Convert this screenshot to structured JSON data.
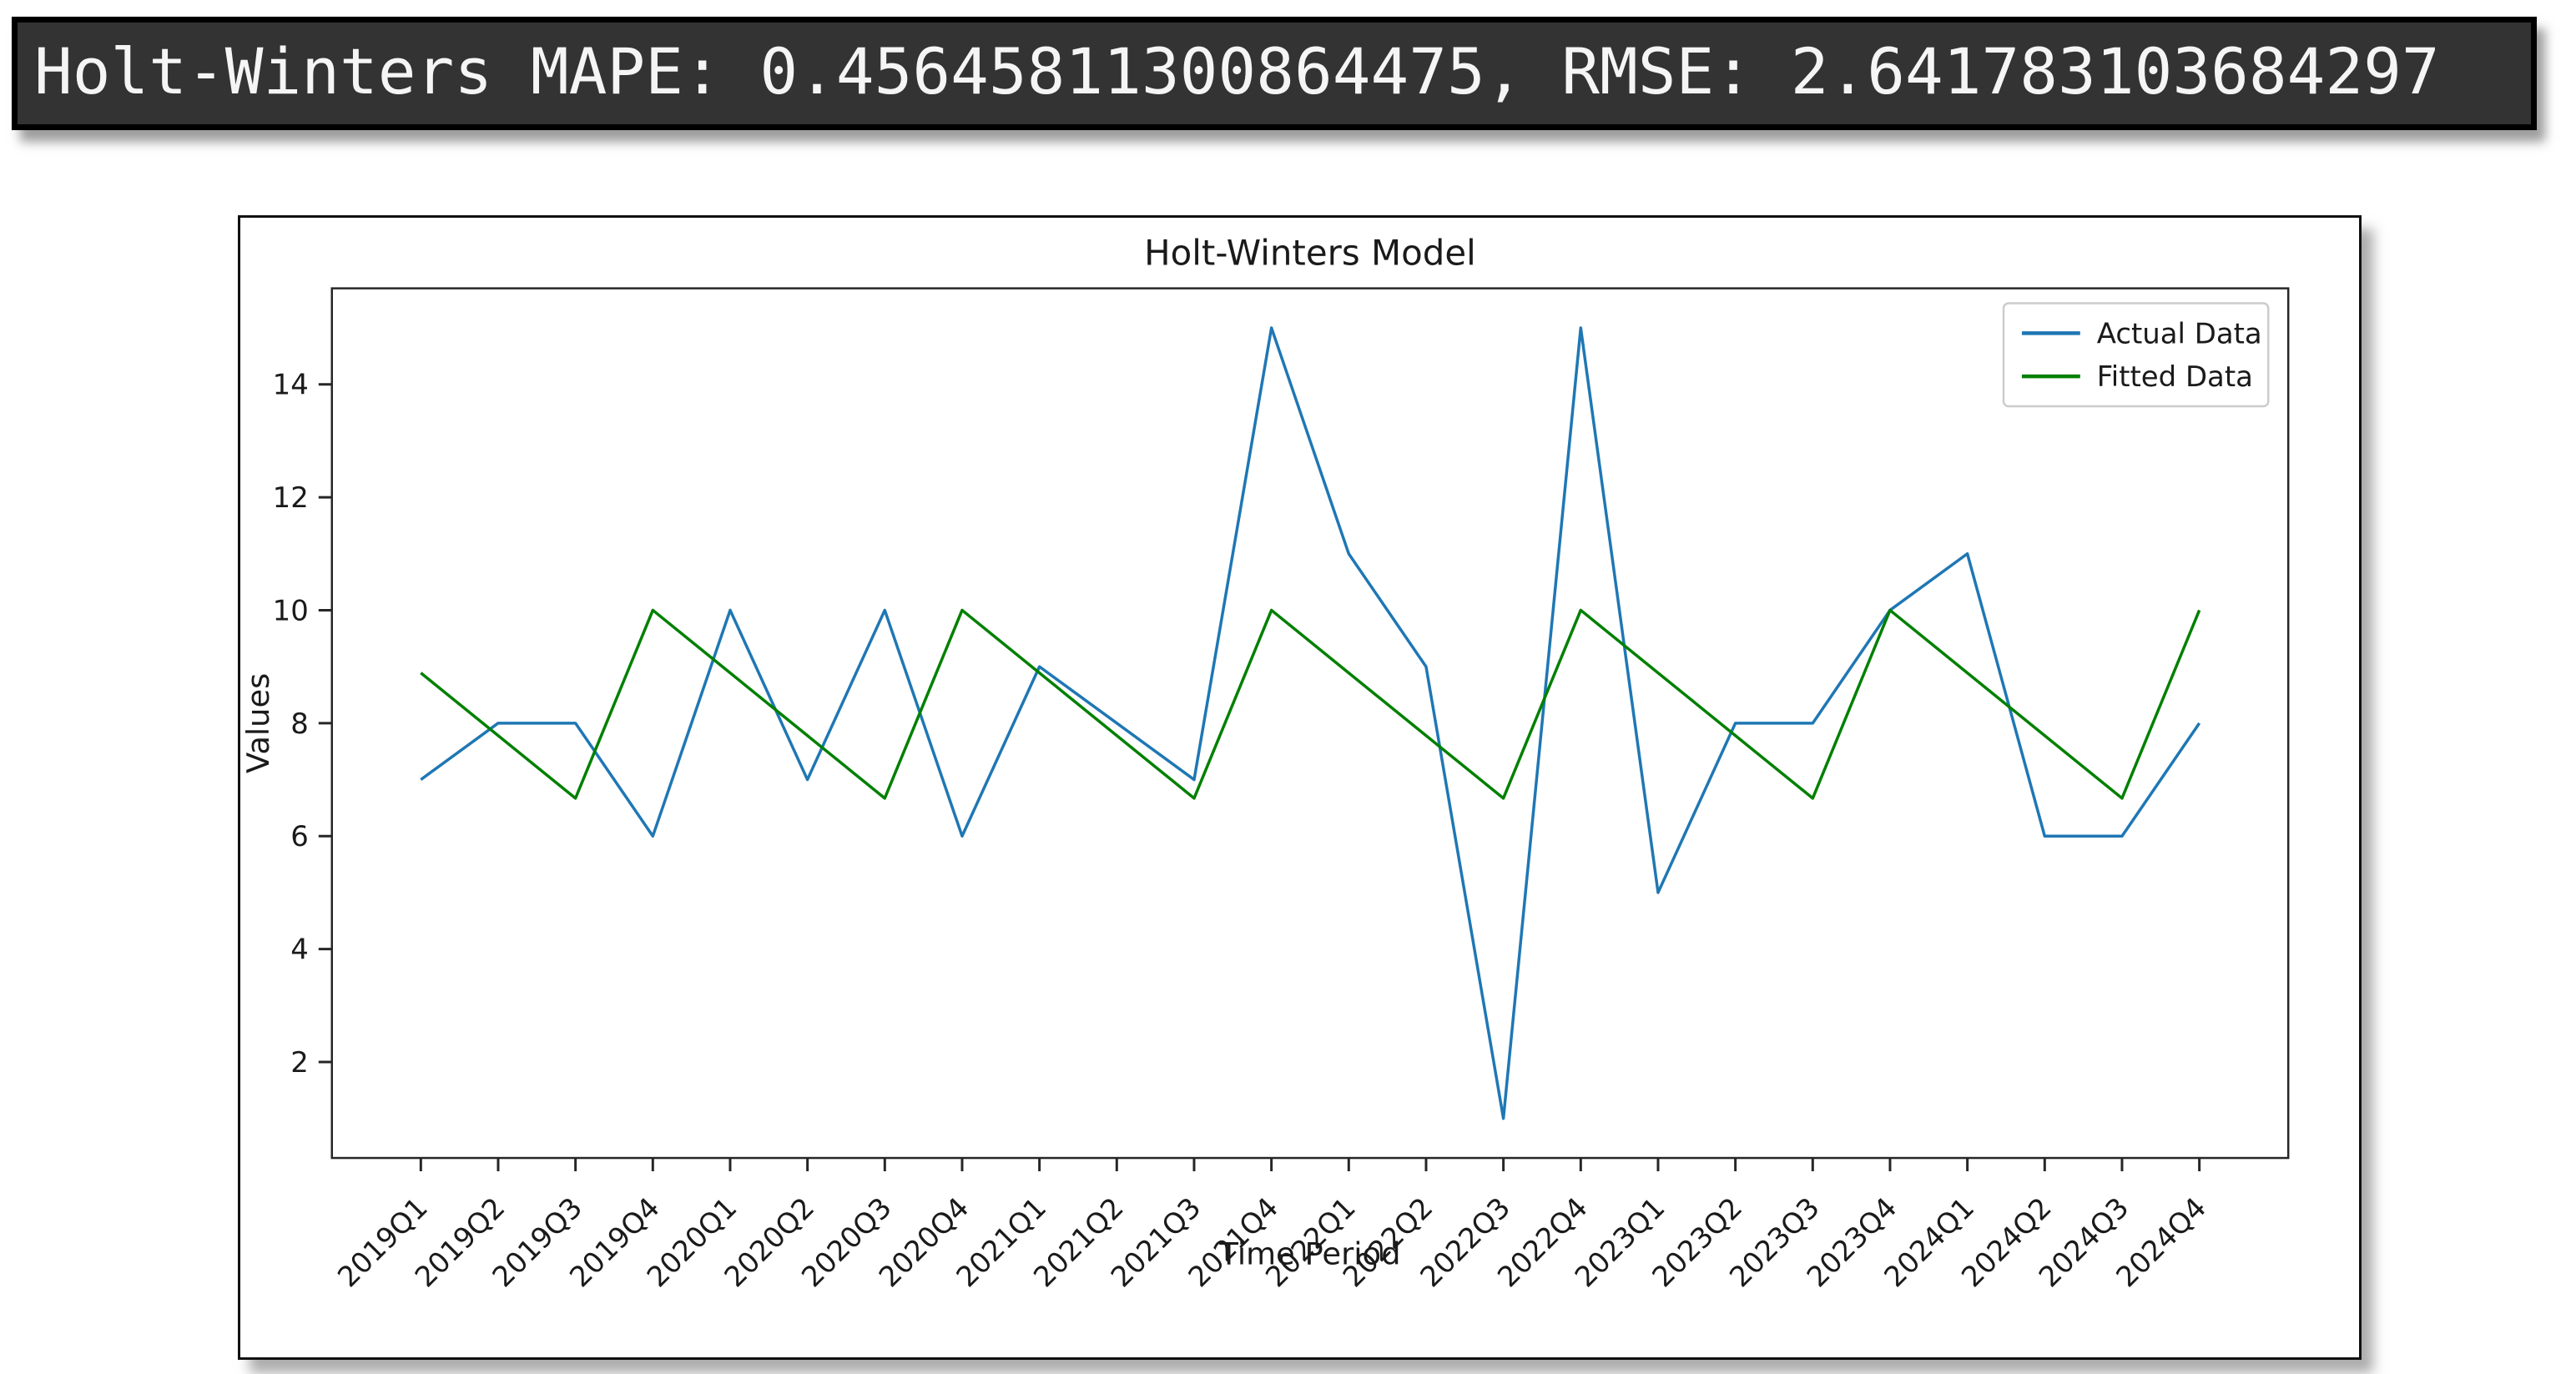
{
  "console": {
    "text": "Holt-Winters MAPE: 0.45645811300864475, RMSE: 2.641783103684297"
  },
  "chart_data": {
    "type": "line",
    "title": "Holt-Winters Model",
    "xlabel": "Time Period",
    "ylabel": "Values",
    "categories": [
      "2019Q1",
      "2019Q2",
      "2019Q3",
      "2019Q4",
      "2020Q1",
      "2020Q2",
      "2020Q3",
      "2020Q4",
      "2021Q1",
      "2021Q2",
      "2021Q3",
      "2021Q4",
      "2022Q1",
      "2022Q2",
      "2022Q3",
      "2022Q4",
      "2023Q1",
      "2023Q2",
      "2023Q3",
      "2023Q4",
      "2024Q1",
      "2024Q2",
      "2024Q3",
      "2024Q4"
    ],
    "series": [
      {
        "name": "Actual Data",
        "color": "#1f77b4",
        "values": [
          7,
          8,
          8,
          6,
          10,
          7,
          10,
          6,
          9,
          8,
          7,
          15,
          11,
          9,
          1,
          15,
          5,
          8,
          8,
          10,
          11,
          6,
          6,
          8
        ]
      },
      {
        "name": "Fitted Data",
        "color": "#008000",
        "values": [
          8.89,
          7.78,
          6.67,
          10,
          8.89,
          7.78,
          6.67,
          10,
          8.89,
          7.78,
          6.67,
          10,
          8.89,
          7.78,
          6.67,
          10,
          8.89,
          7.78,
          6.67,
          10,
          8.89,
          7.78,
          6.67,
          10
        ]
      }
    ],
    "yticks": [
      2,
      4,
      6,
      8,
      10,
      12,
      14
    ],
    "ylim": [
      0.3,
      15.7
    ],
    "xlim": [
      -1.15,
      24.15
    ],
    "legend_position": "upper right",
    "grid": false,
    "text_color": "#1a1a1a",
    "spine_color": "#262626"
  }
}
